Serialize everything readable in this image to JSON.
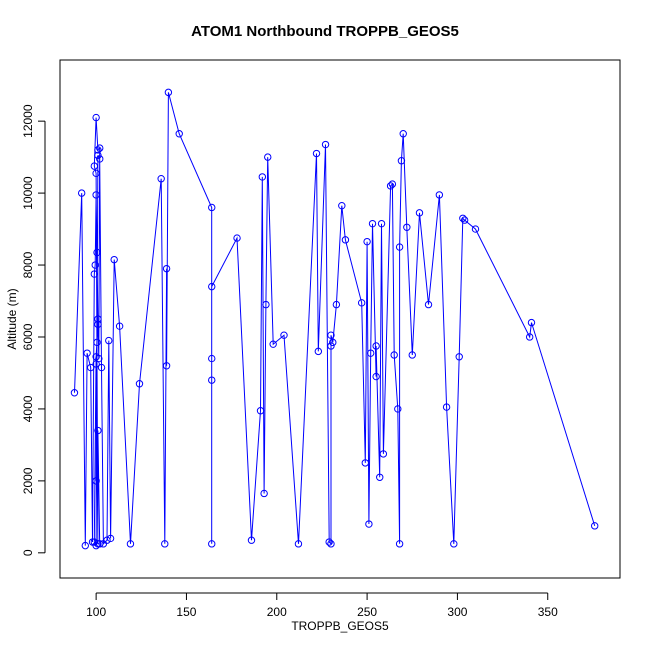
{
  "chart_data": {
    "type": "line",
    "title": "ATOM1 Northbound TROPPB_GEOS5",
    "xlabel": "TROPPB_GEOS5",
    "ylabel": "Altitude (m)",
    "xlim": [
      80,
      390
    ],
    "ylim": [
      -700,
      13700
    ],
    "x_ticks": [
      100,
      150,
      200,
      250,
      300,
      350
    ],
    "y_ticks": [
      0,
      2000,
      4000,
      6000,
      8000,
      10000,
      12000
    ],
    "grid": false,
    "legend": "none",
    "series": [
      {
        "marker": "open-circle",
        "x": [
          88,
          92,
          94,
          95,
          97,
          98,
          99,
          99.5,
          100,
          100.5,
          101,
          101.5,
          102,
          101,
          100,
          99,
          100,
          101,
          100,
          102,
          101,
          100,
          100.5,
          101,
          100,
          99,
          100,
          101,
          102,
          103,
          104,
          106,
          107,
          108,
          110,
          113,
          119,
          124,
          136,
          138,
          139,
          139,
          140,
          146,
          164,
          164,
          164,
          164,
          164,
          178,
          186,
          191,
          192,
          193,
          194,
          195,
          198,
          204,
          212,
          222,
          223,
          227,
          229,
          230,
          230,
          230,
          231,
          233,
          236,
          238,
          247,
          249,
          250,
          251,
          252,
          253,
          255,
          255,
          257,
          258,
          259,
          263,
          264,
          265,
          267,
          268,
          268,
          269,
          270,
          272,
          275,
          279,
          284,
          290,
          294,
          298,
          301,
          303,
          304,
          310,
          340,
          341,
          376
        ],
        "y": [
          4450,
          10000,
          200,
          5550,
          5150,
          300,
          7750,
          8000,
          9950,
          8350,
          6500,
          5400,
          11250,
          11200,
          12100,
          10750,
          10550,
          250,
          5250,
          250,
          3400,
          2000,
          5850,
          6350,
          5450,
          300,
          200,
          11050,
          10950,
          5150,
          250,
          350,
          5900,
          400,
          8150,
          6300,
          250,
          4700,
          10400,
          250,
          7900,
          5200,
          12800,
          11650,
          9600,
          5400,
          4800,
          250,
          7400,
          8750,
          350,
          3950,
          10450,
          1650,
          6900,
          11000,
          5800,
          6050,
          250,
          11100,
          5600,
          11350,
          300,
          250,
          5750,
          6050,
          5850,
          6900,
          9650,
          8700,
          6950,
          2500,
          8650,
          800,
          5550,
          9150,
          4900,
          5750,
          2100,
          9150,
          2750,
          10200,
          10250,
          5500,
          4000,
          250,
          8500,
          10900,
          11650,
          9050,
          5500,
          9450,
          6900,
          9950,
          4050,
          250,
          5450,
          9300,
          9250,
          9000,
          6000,
          6400,
          750
        ]
      }
    ]
  },
  "colors": {
    "series": "#0000ff",
    "axis": "#000000"
  }
}
